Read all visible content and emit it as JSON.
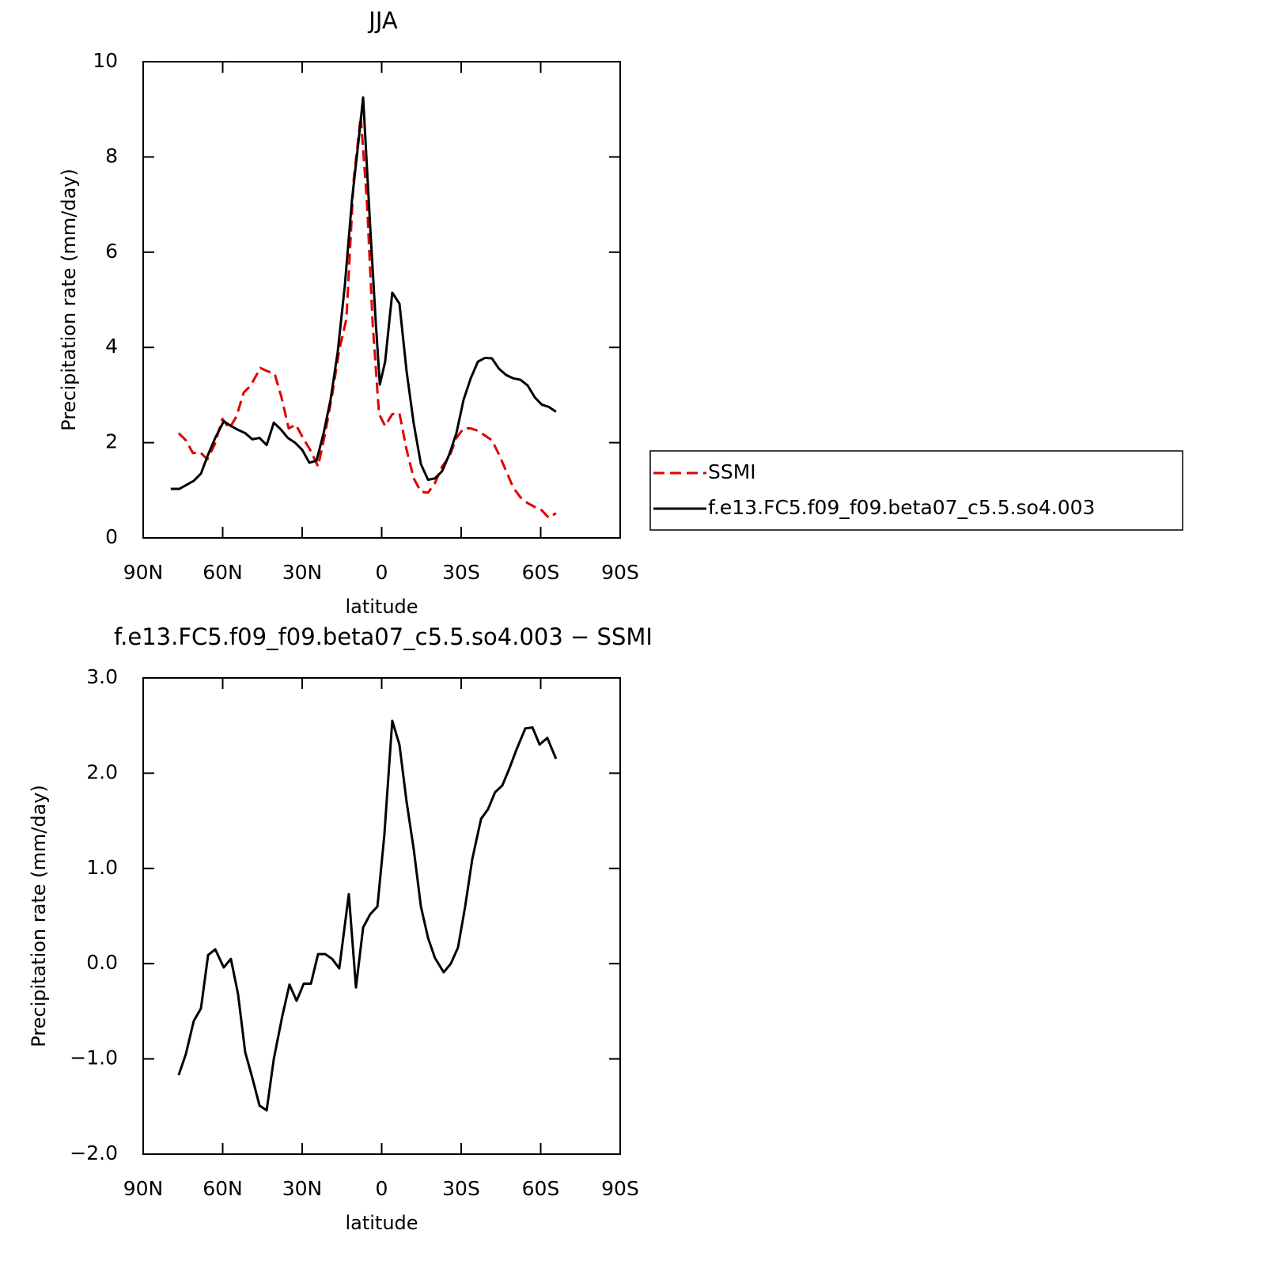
{
  "chart_data": [
    {
      "type": "line",
      "title": "JJA",
      "xlabel": "latitude",
      "ylabel": "Precipitation rate (mm/day)",
      "xlim": [
        90,
        -90
      ],
      "xticks": [
        {
          "value": 90,
          "label": "90N"
        },
        {
          "value": 60,
          "label": "60N"
        },
        {
          "value": 30,
          "label": "30N"
        },
        0,
        {
          "value": -30,
          "label": "30S"
        },
        {
          "value": -60,
          "label": "60S"
        },
        {
          "value": -90,
          "label": "90S"
        }
      ],
      "ylim": [
        0,
        10
      ],
      "yticks": [
        0,
        2,
        4,
        6,
        8,
        10
      ],
      "legend": "right",
      "series": [
        {
          "name": "SSMI",
          "color": "#e00000",
          "style": "dashed",
          "x": [
            76.6,
            73.9,
            71.2,
            68.5,
            65.8,
            63.1,
            60.1,
            57.5,
            54.8,
            52.1,
            49.4,
            45.8,
            43.1,
            40.4,
            37.8,
            35.1,
            32.4,
            29.7,
            27.0,
            24.0,
            21.3,
            18.7,
            16.0,
            13.3,
            10.6,
            7.9,
            5.5,
            3.4,
            1.0,
            -1.3,
            -4.0,
            -6.7,
            -9.4,
            -12.1,
            -14.8,
            -17.5,
            -20.1,
            -22.8,
            -25.5,
            -28.2,
            -30.9,
            -33.6,
            -36.3,
            -39.0,
            -41.6,
            -44.3,
            -47.0,
            -49.7,
            -52.4,
            -55.1,
            -57.8,
            -60.4,
            -63.1,
            -65.8
          ],
          "values": [
            2.2,
            2.05,
            1.78,
            1.8,
            1.65,
            1.95,
            2.5,
            2.3,
            2.55,
            3.05,
            3.2,
            3.57,
            3.5,
            3.45,
            2.95,
            2.3,
            2.38,
            2.1,
            1.85,
            1.5,
            2.2,
            3.0,
            3.95,
            4.6,
            7.5,
            8.85,
            7.0,
            4.5,
            2.6,
            2.35,
            2.6,
            2.62,
            1.85,
            1.25,
            0.97,
            0.95,
            1.15,
            1.5,
            1.7,
            2.1,
            2.3,
            2.3,
            2.25,
            2.15,
            2.05,
            1.75,
            1.4,
            1.05,
            0.85,
            0.73,
            0.65,
            0.58,
            0.42,
            0.52
          ]
        },
        {
          "name": "f.e13.FC5.f09_f09.beta07_c5.5.so4.003",
          "color": "#000000",
          "style": "solid",
          "x": [
            79.6,
            76.3,
            70.9,
            68.2,
            65.5,
            62.8,
            59.6,
            56.9,
            54.2,
            51.5,
            48.8,
            46.1,
            43.4,
            40.7,
            38.1,
            35.4,
            32.7,
            30.0,
            27.3,
            24.6,
            21.9,
            19.3,
            16.6,
            13.9,
            11.2,
            8.8,
            7.0,
            4.3,
            2.2,
            0.7,
            -1.3,
            -4.0,
            -6.7,
            -9.4,
            -12.1,
            -14.8,
            -17.5,
            -20.1,
            -22.8,
            -25.5,
            -28.2,
            -30.9,
            -33.6,
            -36.3,
            -39.0,
            -41.6,
            -44.3,
            -47.0,
            -49.7,
            -52.4,
            -55.1,
            -57.8,
            -60.4,
            -63.1,
            -65.8
          ],
          "values": [
            1.03,
            1.03,
            1.2,
            1.35,
            1.75,
            2.1,
            2.45,
            2.35,
            2.27,
            2.2,
            2.07,
            2.1,
            1.95,
            2.42,
            2.28,
            2.1,
            2.0,
            1.85,
            1.58,
            1.62,
            2.2,
            2.9,
            3.9,
            5.3,
            7.1,
            8.3,
            9.25,
            6.5,
            4.5,
            3.22,
            3.7,
            5.15,
            4.92,
            3.5,
            2.4,
            1.55,
            1.22,
            1.25,
            1.4,
            1.75,
            2.2,
            2.9,
            3.35,
            3.7,
            3.78,
            3.77,
            3.55,
            3.42,
            3.35,
            3.32,
            3.2,
            2.95,
            2.8,
            2.75,
            2.65
          ]
        }
      ]
    },
    {
      "type": "line",
      "title": "f.e13.FC5.f09_f09.beta07_c5.5.so4.003 − SSMI",
      "xlabel": "latitude",
      "ylabel": "Precipitation rate (mm/day)",
      "xlim": [
        90,
        -90
      ],
      "xticks": [
        {
          "value": 90,
          "label": "90N"
        },
        {
          "value": 60,
          "label": "60N"
        },
        {
          "value": 30,
          "label": "30N"
        },
        0,
        {
          "value": -30,
          "label": "30S"
        },
        {
          "value": -60,
          "label": "60S"
        },
        {
          "value": -90,
          "label": "90S"
        }
      ],
      "ylim": [
        -2,
        3
      ],
      "yticks": [
        {
          "value": 3,
          "label": "3.0"
        },
        {
          "value": 2,
          "label": "2.0"
        },
        {
          "value": 1,
          "label": "1.0"
        },
        {
          "value": 0,
          "label": "0.0"
        },
        {
          "value": -1,
          "label": "−1.0"
        },
        {
          "value": -2,
          "label": "−2.0"
        }
      ],
      "series": [
        {
          "color": "#000000",
          "style": "solid",
          "x": [
            76.6,
            73.9,
            70.9,
            68.2,
            65.5,
            62.8,
            59.6,
            56.9,
            54.2,
            51.5,
            48.8,
            46.1,
            43.4,
            40.7,
            37.5,
            34.8,
            32.1,
            29.4,
            26.7,
            24.0,
            21.3,
            18.7,
            16.0,
            12.4,
            9.7,
            7.0,
            4.3,
            1.6,
            -1.0,
            -4.0,
            -6.7,
            -9.4,
            -12.1,
            -14.8,
            -17.5,
            -20.1,
            -23.4,
            -26.1,
            -28.8,
            -31.5,
            -34.2,
            -37.5,
            -40.1,
            -42.8,
            -45.5,
            -48.2,
            -50.9,
            -54.2,
            -56.9,
            -59.6,
            -62.5,
            -65.8
          ],
          "values": [
            -1.17,
            -0.95,
            -0.6,
            -0.47,
            0.09,
            0.15,
            -0.04,
            0.05,
            -0.32,
            -0.93,
            -1.2,
            -1.49,
            -1.54,
            -1.0,
            -0.55,
            -0.22,
            -0.39,
            -0.21,
            -0.21,
            0.1,
            0.1,
            0.05,
            -0.05,
            0.73,
            -0.25,
            0.38,
            0.52,
            0.6,
            1.35,
            2.55,
            2.3,
            1.7,
            1.2,
            0.6,
            0.27,
            0.06,
            -0.09,
            0.0,
            0.17,
            0.6,
            1.1,
            1.52,
            1.62,
            1.8,
            1.87,
            2.05,
            2.25,
            2.47,
            2.48,
            2.3,
            2.37,
            2.15
          ]
        }
      ]
    }
  ]
}
